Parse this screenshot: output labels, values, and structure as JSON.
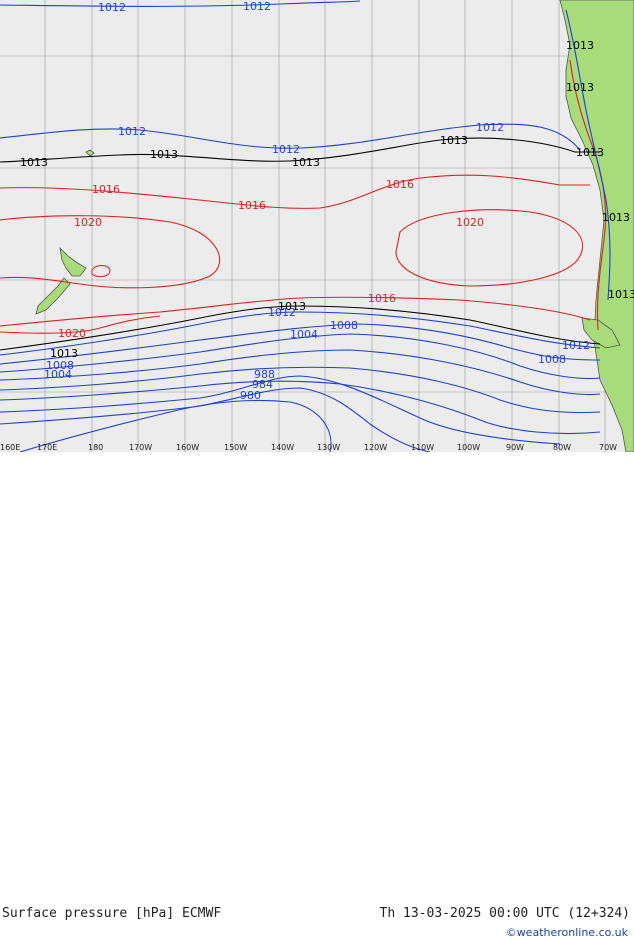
{
  "title": "Surface pressure [hPa] ECMWF",
  "valid_time": "Th 13-03-2025 00:00 UTC (12+324)",
  "copyright": "©weatheronline.co.uk",
  "colors": {
    "ocean": "#ececec",
    "land": "#a8dc7a",
    "coast": "#555555",
    "isobar_low": "#1f3fd8",
    "isobar_1013": "#000000",
    "isobar_high": "#e02020",
    "grid": "#999999"
  },
  "longitude_labels": [
    "160E",
    "170E",
    "180",
    "170W",
    "160W",
    "150W",
    "140W",
    "130W",
    "120W",
    "110W",
    "100W",
    "90W",
    "80W",
    "70W"
  ],
  "isobar_labels": [
    {
      "text": "1012",
      "color": "blue"
    },
    {
      "text": "1012",
      "color": "blue"
    },
    {
      "text": "1012",
      "color": "blue"
    },
    {
      "text": "1012",
      "color": "blue"
    },
    {
      "text": "1012",
      "color": "blue"
    },
    {
      "text": "1013",
      "color": "black"
    },
    {
      "text": "1013",
      "color": "black"
    },
    {
      "text": "1013",
      "color": "black"
    },
    {
      "text": "1013",
      "color": "black"
    },
    {
      "text": "1013",
      "color": "black"
    },
    {
      "text": "1013",
      "color": "black"
    },
    {
      "text": "1016",
      "color": "red"
    },
    {
      "text": "1016",
      "color": "red"
    },
    {
      "text": "1016",
      "color": "red"
    },
    {
      "text": "1020",
      "color": "red"
    },
    {
      "text": "1020",
      "color": "red"
    },
    {
      "text": "1016",
      "color": "red"
    },
    {
      "text": "1013",
      "color": "black"
    },
    {
      "text": "1012",
      "color": "blue"
    },
    {
      "text": "1008",
      "color": "blue"
    },
    {
      "text": "1004",
      "color": "blue"
    },
    {
      "text": "1020",
      "color": "red"
    },
    {
      "text": "1013",
      "color": "black"
    },
    {
      "text": "1008",
      "color": "blue"
    },
    {
      "text": "1004",
      "color": "blue"
    },
    {
      "text": "1008",
      "color": "blue"
    },
    {
      "text": "1012",
      "color": "blue"
    },
    {
      "text": "988",
      "color": "blue"
    },
    {
      "text": "984",
      "color": "blue"
    },
    {
      "text": "980",
      "color": "blue"
    },
    {
      "text": "1013",
      "color": "black"
    },
    {
      "text": "1013",
      "color": "black"
    },
    {
      "text": "1013",
      "color": "black"
    }
  ]
}
